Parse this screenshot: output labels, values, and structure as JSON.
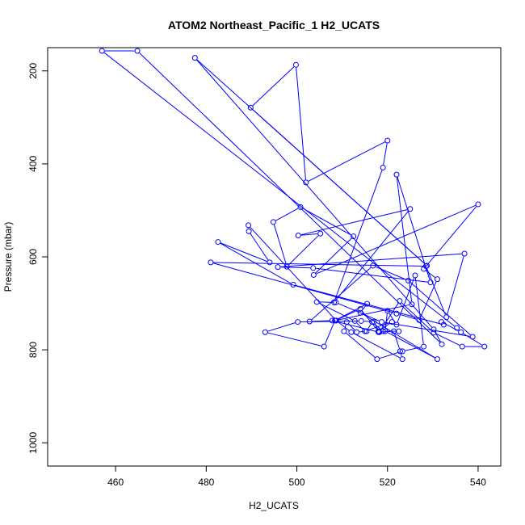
{
  "chart_data": {
    "type": "line",
    "title": "ATOM2 Northeast_Pacific_1 H2_UCATS",
    "xlabel": "H2_UCATS",
    "ylabel": "Pressure (mbar)",
    "xlim": [
      445,
      545
    ],
    "ylim": [
      1050,
      150
    ],
    "y_reversed": true,
    "xticks": [
      460,
      480,
      500,
      520,
      540
    ],
    "yticks": [
      200,
      400,
      600,
      800,
      1000
    ],
    "color": "#0000ff",
    "marker": "open-circle",
    "series": [
      {
        "x": [
          535.3,
          457.0,
          464.8,
          532.0,
          530.2,
          477.5,
          528.7,
          489.8,
          499.8,
          502.0,
          520.0,
          519.0,
          508.2,
          525.0,
          500.3,
          505.2,
          497.8,
          494.8,
          500.8,
          512.5,
          503.7,
          540.0,
          528.0,
          531.0,
          527.0,
          522.0,
          481.0,
          528.5,
          533.0,
          537.0,
          495.8,
          503.6,
          529.5,
          522.0,
          525.4,
          508.5,
          514.0,
          518.0,
          521.0,
          515.0,
          512.8,
          504.4,
          508.6,
          518.7,
          538.8,
          524.6,
          516.8,
          502.8,
          507.8,
          518.0,
          521.4,
          522.8,
          523.3,
          512.0,
          508.7,
          489.3,
          489.4,
          494.0,
          482.6,
          499.2,
          532.4,
          531.9,
          536.2,
          541.4,
          536.5,
          530.2,
          522.7,
          518.2,
          517.0,
          514.2,
          500.2,
          493.0,
          506.0,
          508.4,
          515.5,
          514.0,
          531.0,
          519.5,
          520.0,
          522.0,
          526.1,
          528.0,
          523.3,
          517.7,
          510.4,
          511.0,
          513.2,
          515.4,
          516.6,
          519.0,
          522.5
        ],
        "y": [
          753,
          157,
          157,
          788,
          756,
          172,
          619,
          279,
          187,
          440,
          350,
          408,
          698,
          497,
          554,
          550,
          621,
          525,
          493,
          556,
          639,
          487,
          626,
          648,
          736,
          722,
          612,
          620,
          730,
          593,
          622,
          624,
          655,
          423,
          702,
          737,
          712,
          760,
          740,
          760,
          738,
          697,
          698,
          740,
          772,
          651,
          619,
          739,
          737,
          762,
          760,
          803,
          820,
          762,
          737,
          532,
          545,
          612,
          568,
          660,
          746,
          740,
          762,
          793,
          793,
          763,
          695,
          762,
          740,
          738,
          740,
          762,
          793,
          737,
          701,
          720,
          820,
          760,
          716,
          746,
          640,
          793,
          803,
          820,
          760,
          740,
          762,
          760,
          740,
          760,
          760
        ]
      }
    ]
  }
}
